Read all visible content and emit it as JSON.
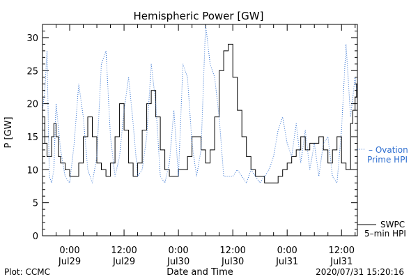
{
  "chart_data": {
    "type": "line",
    "title": "Hemispheric Power [GW]",
    "ylabel": "P [GW]",
    "xlabel": "Date and Time",
    "ylim": [
      0,
      32
    ],
    "yticks": [
      0,
      5,
      10,
      15,
      20,
      25,
      30
    ],
    "xlim": [
      "2020-07-28 18:00",
      "2020-07-31 15:30"
    ],
    "xticks": [
      {
        "time": "2020-07-29 00:00",
        "line1": "0:00",
        "line2": "Jul29"
      },
      {
        "time": "2020-07-29 12:00",
        "line1": "12:00",
        "line2": "Jul29"
      },
      {
        "time": "2020-07-30 00:00",
        "line1": "0:00",
        "line2": "Jul30"
      },
      {
        "time": "2020-07-30 12:00",
        "line1": "12:00",
        "line2": "Jul30"
      },
      {
        "time": "2020-07-31 00:00",
        "line1": "0:00",
        "line2": "Jul31"
      },
      {
        "time": "2020-07-31 12:00",
        "line1": "12:00",
        "line2": "Jul31"
      }
    ],
    "grid": false,
    "series": [
      {
        "name": "5-min HPI",
        "label_line1": "SWPC",
        "label_line2": "5–min HPI",
        "color": "#000000",
        "style": "step",
        "x": [
          "2020-07-28 18:00",
          "2020-07-28 18:30",
          "2020-07-28 19:00",
          "2020-07-28 19:30",
          "2020-07-28 20:00",
          "2020-07-28 20:30",
          "2020-07-28 21:00",
          "2020-07-28 21:30",
          "2020-07-28 22:00",
          "2020-07-28 23:00",
          "2020-07-29 00:00",
          "2020-07-29 01:00",
          "2020-07-29 02:00",
          "2020-07-29 03:00",
          "2020-07-29 04:00",
          "2020-07-29 05:00",
          "2020-07-29 06:00",
          "2020-07-29 07:00",
          "2020-07-29 08:00",
          "2020-07-29 09:00",
          "2020-07-29 10:00",
          "2020-07-29 11:00",
          "2020-07-29 12:00",
          "2020-07-29 13:00",
          "2020-07-29 14:00",
          "2020-07-29 15:00",
          "2020-07-29 16:00",
          "2020-07-29 17:00",
          "2020-07-29 18:00",
          "2020-07-29 19:00",
          "2020-07-29 20:00",
          "2020-07-29 21:00",
          "2020-07-29 22:00",
          "2020-07-29 23:00",
          "2020-07-30 00:00",
          "2020-07-30 01:00",
          "2020-07-30 02:00",
          "2020-07-30 03:00",
          "2020-07-30 04:00",
          "2020-07-30 05:00",
          "2020-07-30 06:00",
          "2020-07-30 07:00",
          "2020-07-30 08:00",
          "2020-07-30 09:00",
          "2020-07-30 10:00",
          "2020-07-30 11:00",
          "2020-07-30 12:00",
          "2020-07-30 13:00",
          "2020-07-30 14:00",
          "2020-07-30 15:00",
          "2020-07-30 16:00",
          "2020-07-30 17:00",
          "2020-07-30 18:00",
          "2020-07-30 19:00",
          "2020-07-30 20:00",
          "2020-07-30 21:00",
          "2020-07-30 22:00",
          "2020-07-30 23:00",
          "2020-07-31 00:00",
          "2020-07-31 01:00",
          "2020-07-31 02:00",
          "2020-07-31 03:00",
          "2020-07-31 04:00",
          "2020-07-31 05:00",
          "2020-07-31 06:00",
          "2020-07-31 07:00",
          "2020-07-31 08:00",
          "2020-07-31 09:00",
          "2020-07-31 10:00",
          "2020-07-31 11:00",
          "2020-07-31 12:00",
          "2020-07-31 13:00",
          "2020-07-31 14:00",
          "2020-07-31 14:30",
          "2020-07-31 15:00",
          "2020-07-31 15:20"
        ],
        "values": [
          18,
          14,
          12,
          12,
          15,
          17,
          15,
          12,
          11,
          10,
          9,
          9,
          11,
          15,
          18,
          15,
          11,
          10,
          9,
          11,
          15,
          20,
          16,
          11,
          9,
          11,
          16,
          20,
          22,
          18,
          13,
          10,
          9,
          9,
          10,
          10,
          12,
          15,
          15,
          13,
          11,
          13,
          18,
          25,
          28,
          29,
          24,
          19,
          15,
          12,
          10,
          9,
          9,
          8,
          8,
          8,
          9,
          10,
          11,
          12,
          13,
          15,
          13,
          14,
          14,
          15,
          13,
          11,
          13,
          15,
          11,
          10,
          17,
          19,
          21,
          23
        ]
      },
      {
        "name": "Ovation Prime HPI",
        "label_line1": "– Ovation",
        "label_line2": "Prime HPI",
        "color": "#2f6fd0",
        "style": "dotted",
        "x": [
          "2020-07-28 18:00",
          "2020-07-28 18:30",
          "2020-07-28 19:00",
          "2020-07-28 19:30",
          "2020-07-28 20:00",
          "2020-07-28 20:30",
          "2020-07-28 21:00",
          "2020-07-28 22:00",
          "2020-07-28 23:00",
          "2020-07-29 00:00",
          "2020-07-29 01:00",
          "2020-07-29 02:00",
          "2020-07-29 03:00",
          "2020-07-29 04:00",
          "2020-07-29 05:00",
          "2020-07-29 06:00",
          "2020-07-29 07:00",
          "2020-07-29 08:00",
          "2020-07-29 09:00",
          "2020-07-29 10:00",
          "2020-07-29 11:00",
          "2020-07-29 12:00",
          "2020-07-29 13:00",
          "2020-07-29 14:00",
          "2020-07-29 15:00",
          "2020-07-29 16:00",
          "2020-07-29 17:00",
          "2020-07-29 18:00",
          "2020-07-29 19:00",
          "2020-07-29 20:00",
          "2020-07-29 21:00",
          "2020-07-29 22:00",
          "2020-07-29 23:00",
          "2020-07-30 00:00",
          "2020-07-30 01:00",
          "2020-07-30 02:00",
          "2020-07-30 03:00",
          "2020-07-30 04:00",
          "2020-07-30 05:00",
          "2020-07-30 06:00",
          "2020-07-30 07:00",
          "2020-07-30 08:00",
          "2020-07-30 09:00",
          "2020-07-30 10:00",
          "2020-07-30 11:00",
          "2020-07-30 12:00",
          "2020-07-30 13:00",
          "2020-07-30 14:00",
          "2020-07-30 15:00",
          "2020-07-30 16:00",
          "2020-07-30 17:00",
          "2020-07-30 18:00",
          "2020-07-30 19:00",
          "2020-07-30 20:00",
          "2020-07-30 21:00",
          "2020-07-30 22:00",
          "2020-07-30 23:00",
          "2020-07-31 00:00",
          "2020-07-31 01:00",
          "2020-07-31 02:00",
          "2020-07-31 03:00",
          "2020-07-31 04:00",
          "2020-07-31 05:00",
          "2020-07-31 06:00",
          "2020-07-31 07:00",
          "2020-07-31 08:00",
          "2020-07-31 09:00",
          "2020-07-31 10:00",
          "2020-07-31 11:00",
          "2020-07-31 12:00",
          "2020-07-31 13:00",
          "2020-07-31 14:00",
          "2020-07-31 15:00",
          "2020-07-31 15:20"
        ],
        "values": [
          19,
          22,
          28,
          9,
          8,
          10,
          20,
          13,
          9,
          8,
          14,
          23,
          18,
          10,
          8,
          12,
          26,
          28,
          15,
          9,
          12,
          19,
          24,
          17,
          9,
          10,
          15,
          26,
          20,
          9,
          8,
          11,
          19,
          9,
          26,
          24,
          14,
          9,
          13,
          32,
          26,
          24,
          18,
          9,
          9,
          9,
          10,
          9,
          8,
          10,
          9,
          8,
          9,
          10,
          12,
          16,
          18,
          14,
          12,
          17,
          11,
          16,
          10,
          14,
          9,
          14,
          15,
          9,
          8,
          16,
          29,
          18,
          24,
          22
        ]
      }
    ]
  },
  "footer": {
    "plot_credit": "Plot: CCMC",
    "timestamp": "2020/07/31 15:20:16"
  }
}
